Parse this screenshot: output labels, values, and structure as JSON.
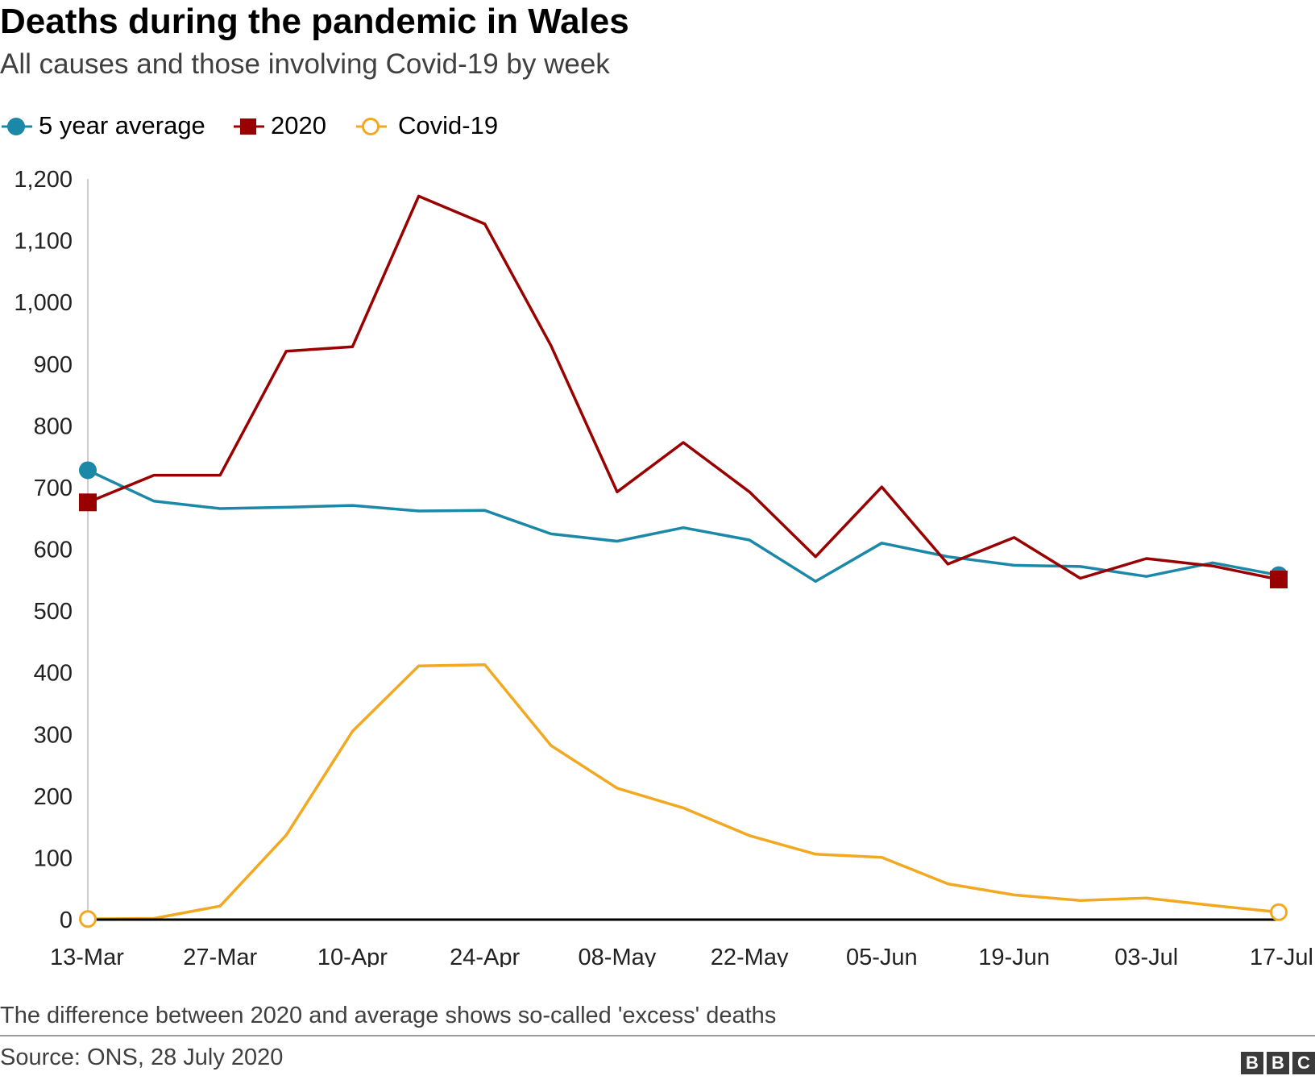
{
  "header": {
    "title": "Deaths during the pandemic in Wales",
    "subtitle": "All causes and those involving Covid-19 by week"
  },
  "legend": [
    {
      "label": "5 year average",
      "marker": "filled-circle"
    },
    {
      "label": "2020",
      "marker": "filled-square"
    },
    {
      "label": "Covid-19",
      "marker": "open-circle"
    }
  ],
  "colors": {
    "average": "#1b88a8",
    "y2020": "#990000",
    "covid": "#f2a921",
    "axis": "#000000",
    "gridline_y": "#cccccc"
  },
  "footer": {
    "note": "The difference between 2020 and average shows so-called 'excess' deaths",
    "source": "Source: ONS, 28 July 2020",
    "logo_letters": [
      "B",
      "B",
      "C"
    ]
  },
  "chart_data": {
    "type": "line",
    "title": "Deaths during the pandemic in Wales",
    "subtitle": "All causes and those involving Covid-19 by week",
    "xlabel": "",
    "ylabel": "",
    "ylim": [
      0,
      1200
    ],
    "yticks": [
      0,
      100,
      200,
      300,
      400,
      500,
      600,
      700,
      800,
      900,
      1000,
      1100,
      1200
    ],
    "ytick_labels": [
      "0",
      "100",
      "200",
      "300",
      "400",
      "500",
      "600",
      "700",
      "800",
      "900",
      "1,000",
      "1,100",
      "1,200"
    ],
    "categories": [
      "13-Mar",
      "20-Mar",
      "27-Mar",
      "03-Apr",
      "10-Apr",
      "17-Apr",
      "24-Apr",
      "01-May",
      "08-May",
      "15-May",
      "22-May",
      "29-May",
      "05-Jun",
      "12-Jun",
      "19-Jun",
      "26-Jun",
      "03-Jul",
      "10-Jul",
      "17-Jul"
    ],
    "xtick_labels": [
      "13-Mar",
      "27-Mar",
      "10-Apr",
      "24-Apr",
      "08-May",
      "22-May",
      "05-Jun",
      "19-Jun",
      "03-Jul",
      "17-Jul"
    ],
    "series": [
      {
        "name": "5 year average",
        "key": "average",
        "values": [
          728,
          678,
          666,
          668,
          671,
          662,
          663,
          625,
          613,
          635,
          615,
          548,
          610,
          588,
          574,
          572,
          556,
          578,
          558
        ]
      },
      {
        "name": "2020",
        "key": "y2020",
        "values": [
          676,
          720,
          720,
          921,
          928,
          1172,
          1127,
          930,
          693,
          773,
          693,
          588,
          701,
          576,
          619,
          553,
          585,
          573,
          551
        ]
      },
      {
        "name": "Covid-19",
        "key": "covid",
        "values": [
          1,
          2,
          22,
          137,
          305,
          411,
          413,
          282,
          213,
          181,
          136,
          106,
          101,
          58,
          40,
          31,
          35,
          23,
          12
        ]
      }
    ],
    "legend_position": "top-left",
    "grid": false
  }
}
